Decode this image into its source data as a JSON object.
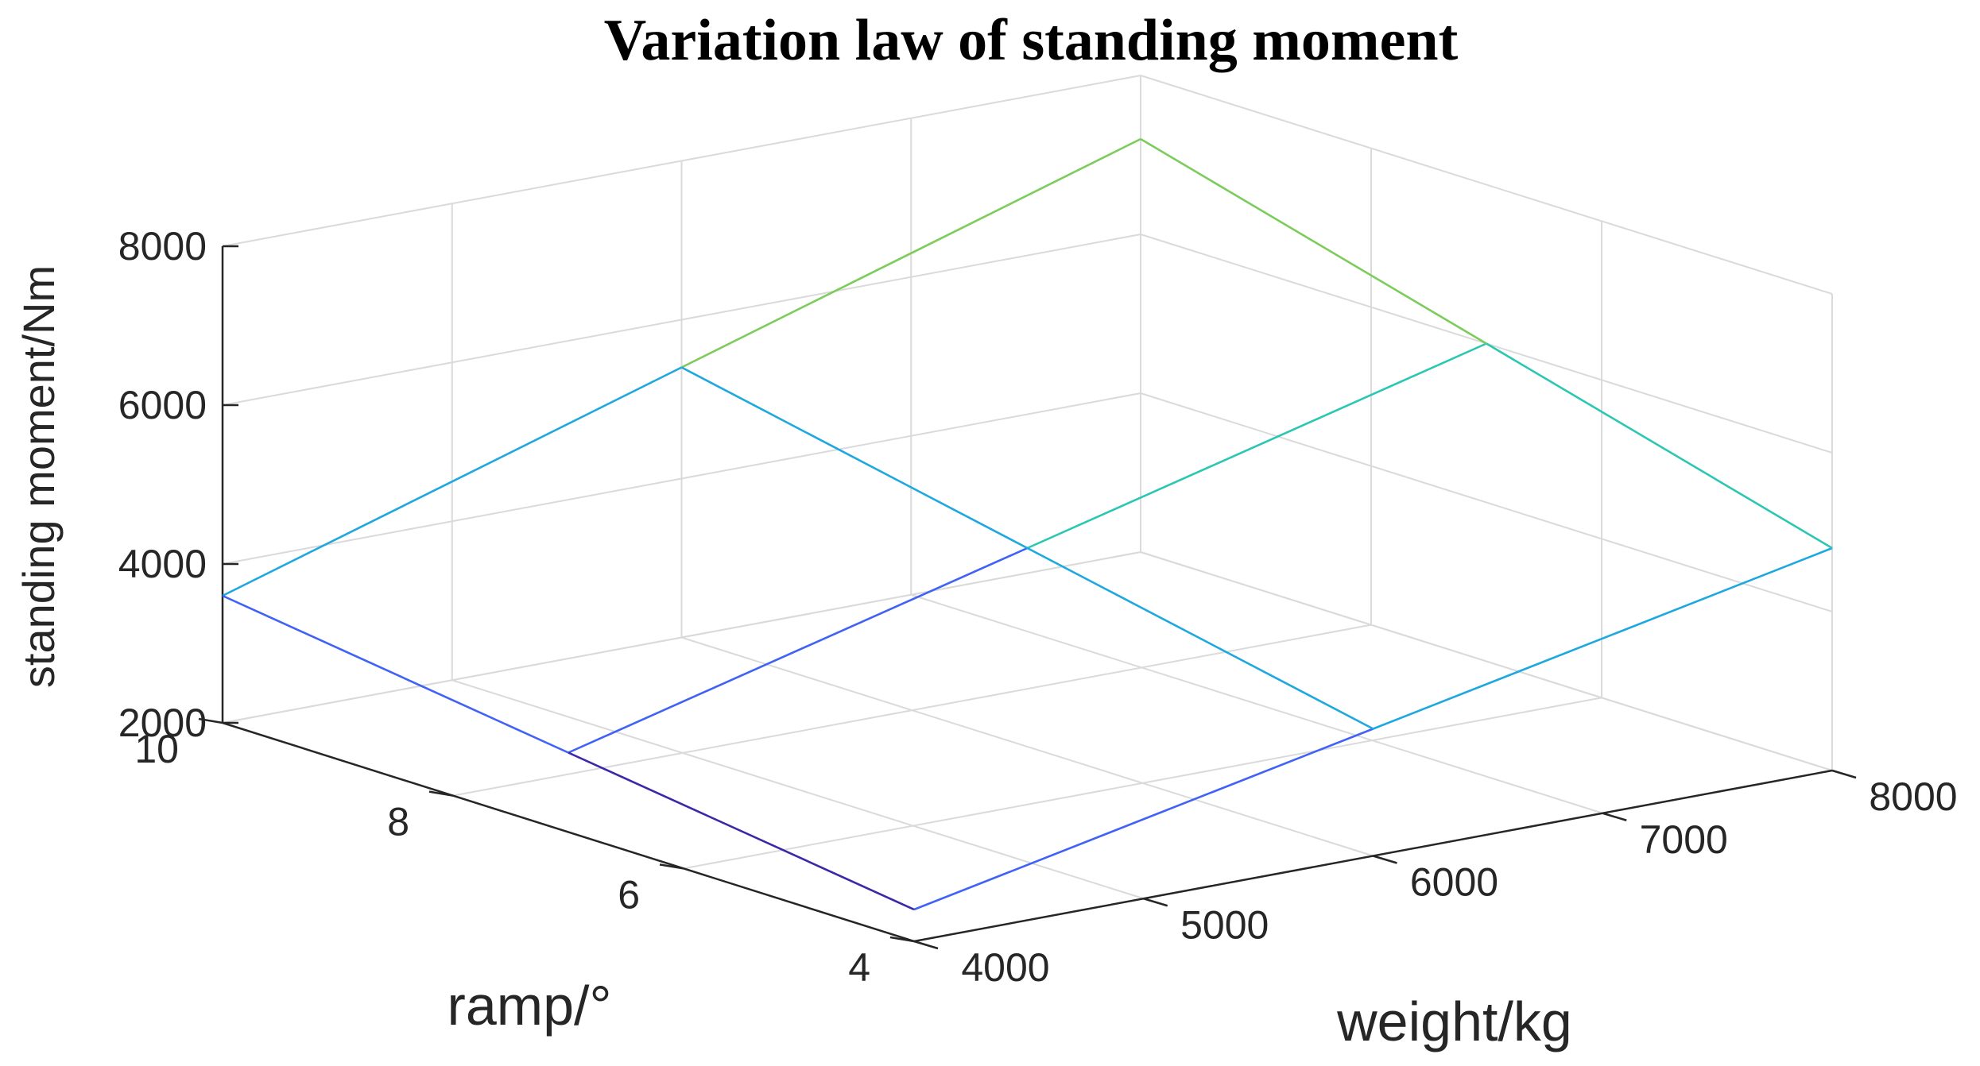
{
  "chart_data": {
    "type": "surface",
    "title": "Variation law of standing moment",
    "xlabel": "weight/kg",
    "ylabel": "ramp/°",
    "zlabel": "standing moment/Nm",
    "x": [
      4000,
      6000,
      8000
    ],
    "y": [
      4,
      7,
      10
    ],
    "z": [
      [
        2400,
        3600,
        4800
      ],
      [
        3000,
        4500,
        6000
      ],
      [
        3600,
        5400,
        7200
      ]
    ],
    "xlim": [
      4000,
      8000
    ],
    "ylim": [
      4,
      10
    ],
    "zlim": [
      2000,
      8000
    ],
    "x_ticks": [
      4000,
      5000,
      6000,
      7000,
      8000
    ],
    "y_ticks": [
      4,
      6,
      8,
      10
    ],
    "z_ticks": [
      2000,
      4000,
      6000,
      8000
    ],
    "grid": true,
    "colormap": [
      "#3e26a8",
      "#4062f6",
      "#1ea8df",
      "#2cc7b2",
      "#7ccc5b",
      "#f9c03a"
    ]
  }
}
